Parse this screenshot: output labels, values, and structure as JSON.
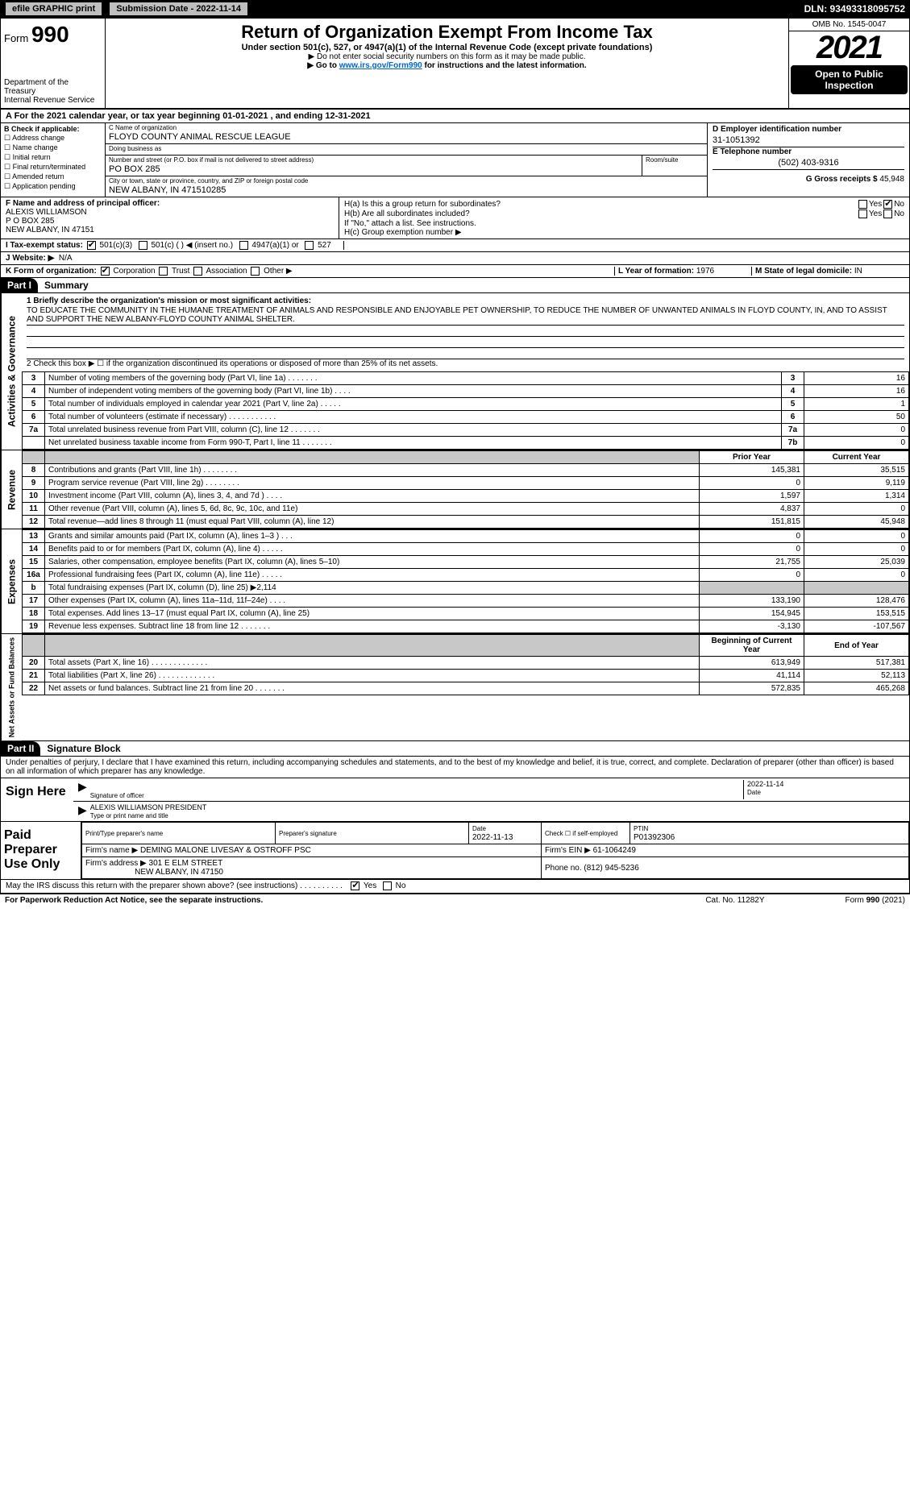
{
  "topbar": {
    "efile": "efile GRAPHIC print",
    "submission_label": "Submission Date - 2022-11-14",
    "dln": "DLN: 93493318095752"
  },
  "header": {
    "form_label": "Form",
    "form_num": "990",
    "dept1": "Department of the Treasury",
    "dept2": "Internal Revenue Service",
    "title": "Return of Organization Exempt From Income Tax",
    "sub1": "Under section 501(c), 527, or 4947(a)(1) of the Internal Revenue Code (except private foundations)",
    "sub2": "▶ Do not enter social security numbers on this form as it may be made public.",
    "sub3_pre": "▶ Go to ",
    "sub3_link": "www.irs.gov/Form990",
    "sub3_post": " for instructions and the latest information.",
    "omb": "OMB No. 1545-0047",
    "year": "2021",
    "inspect1": "Open to Public",
    "inspect2": "Inspection"
  },
  "period": "A For the 2021 calendar year, or tax year beginning 01-01-2021    , and ending 12-31-2021",
  "sectB": {
    "label": "B Check if applicable:",
    "cb1": "Address change",
    "cb2": "Name change",
    "cb3": "Initial return",
    "cb4": "Final return/terminated",
    "cb5": "Amended return",
    "cb6": "Application pending"
  },
  "sectC": {
    "name_lbl": "C Name of organization",
    "name": "FLOYD COUNTY ANIMAL RESCUE LEAGUE",
    "dba_lbl": "Doing business as",
    "dba": "",
    "addr_lbl": "Number and street (or P.O. box if mail is not delivered to street address)",
    "room_lbl": "Room/suite",
    "addr": "PO BOX 285",
    "city_lbl": "City or town, state or province, country, and ZIP or foreign postal code",
    "city": "NEW ALBANY, IN  471510285"
  },
  "sectD": {
    "ein_lbl": "D Employer identification number",
    "ein": "31-1051392",
    "tel_lbl": "E Telephone number",
    "tel": "(502) 403-9316",
    "gross_lbl": "G Gross receipts $",
    "gross": "45,948"
  },
  "sectF": {
    "lbl": "F Name and address of principal officer:",
    "name": "ALEXIS WILLIAMSON",
    "addr1": "P O BOX 285",
    "addr2": "NEW ALBANY, IN  47151"
  },
  "sectH": {
    "ha": "H(a)  Is this a group return for subordinates?",
    "hb": "H(b)  Are all subordinates included?",
    "hb_note": "If \"No,\" attach a list. See instructions.",
    "hc": "H(c)  Group exemption number ▶",
    "yes": "Yes",
    "no": "No"
  },
  "sectI": {
    "lbl": "I  Tax-exempt status:",
    "o1": "501(c)(3)",
    "o2": "501(c) (   ) ◀ (insert no.)",
    "o3": "4947(a)(1) or",
    "o4": "527"
  },
  "sectJ": {
    "lbl": "J  Website: ▶",
    "val": "N/A"
  },
  "sectK": {
    "lbl": "K Form of organization:",
    "o1": "Corporation",
    "o2": "Trust",
    "o3": "Association",
    "o4": "Other ▶"
  },
  "sectL": {
    "lbl": "L Year of formation:",
    "val": "1976"
  },
  "sectM": {
    "lbl": "M State of legal domicile:",
    "val": "IN"
  },
  "part1": {
    "hdr": "Part I",
    "title": "Summary",
    "vtab1": "Activities & Governance",
    "vtab2": "Revenue",
    "vtab3": "Expenses",
    "vtab4": "Net Assets or Fund Balances",
    "l1_lbl": "1  Briefly describe the organization's mission or most significant activities:",
    "l1_text": "TO EDUCATE THE COMMUNITY IN THE HUMANE TREATMENT OF ANIMALS AND RESPONSIBLE AND ENJOYABLE PET OWNERSHIP, TO REDUCE THE NUMBER OF UNWANTED ANIMALS IN FLOYD COUNTY, IN, AND TO ASSIST AND SUPPORT THE NEW ALBANY-FLOYD COUNTY ANIMAL SHELTER.",
    "l2": "2  Check this box ▶ ☐  if the organization discontinued its operations or disposed of more than 25% of its net assets.",
    "rows_ag": [
      {
        "n": "3",
        "d": "Number of voting members of the governing body (Part VI, line 1a)   .    .    .    .    .    .    .",
        "b": "3",
        "v": "16"
      },
      {
        "n": "4",
        "d": "Number of independent voting members of the governing body (Part VI, line 1b)   .    .    .    .",
        "b": "4",
        "v": "16"
      },
      {
        "n": "5",
        "d": "Total number of individuals employed in calendar year 2021 (Part V, line 2a)   .    .    .    .    .",
        "b": "5",
        "v": "1"
      },
      {
        "n": "6",
        "d": "Total number of volunteers (estimate if necessary)   .    .    .    .    .    .    .    .    .    .    .",
        "b": "6",
        "v": "50"
      },
      {
        "n": "7a",
        "d": "Total unrelated business revenue from Part VIII, column (C), line 12   .    .    .    .    .    .    .",
        "b": "7a",
        "v": "0"
      },
      {
        "n": "",
        "d": "Net unrelated business taxable income from Form 990-T, Part I, line 11   .    .    .    .    .    .    .",
        "b": "7b",
        "v": "0"
      }
    ],
    "col_prior": "Prior Year",
    "col_curr": "Current Year",
    "rows_rev": [
      {
        "n": "8",
        "d": "Contributions and grants (Part VIII, line 1h)   .    .    .    .    .    .    .    .",
        "p": "145,381",
        "c": "35,515"
      },
      {
        "n": "9",
        "d": "Program service revenue (Part VIII, line 2g)   .    .    .    .    .    .    .    .",
        "p": "0",
        "c": "9,119"
      },
      {
        "n": "10",
        "d": "Investment income (Part VIII, column (A), lines 3, 4, and 7d )   .    .    .    .",
        "p": "1,597",
        "c": "1,314"
      },
      {
        "n": "11",
        "d": "Other revenue (Part VIII, column (A), lines 5, 6d, 8c, 9c, 10c, and 11e)",
        "p": "4,837",
        "c": "0"
      },
      {
        "n": "12",
        "d": "Total revenue—add lines 8 through 11 (must equal Part VIII, column (A), line 12)",
        "p": "151,815",
        "c": "45,948"
      }
    ],
    "rows_exp": [
      {
        "n": "13",
        "d": "Grants and similar amounts paid (Part IX, column (A), lines 1–3 )   .    .    .",
        "p": "0",
        "c": "0"
      },
      {
        "n": "14",
        "d": "Benefits paid to or for members (Part IX, column (A), line 4)   .    .    .    .    .",
        "p": "0",
        "c": "0"
      },
      {
        "n": "15",
        "d": "Salaries, other compensation, employee benefits (Part IX, column (A), lines 5–10)",
        "p": "21,755",
        "c": "25,039"
      },
      {
        "n": "16a",
        "d": "Professional fundraising fees (Part IX, column (A), line 11e)   .    .    .    .    .",
        "p": "0",
        "c": "0"
      },
      {
        "n": "b",
        "d": "Total fundraising expenses (Part IX, column (D), line 25) ▶2,114",
        "p": "",
        "c": "",
        "shade": true
      },
      {
        "n": "17",
        "d": "Other expenses (Part IX, column (A), lines 11a–11d, 11f–24e)   .    .    .    .",
        "p": "133,190",
        "c": "128,476"
      },
      {
        "n": "18",
        "d": "Total expenses. Add lines 13–17 (must equal Part IX, column (A), line 25)",
        "p": "154,945",
        "c": "153,515"
      },
      {
        "n": "19",
        "d": "Revenue less expenses. Subtract line 18 from line 12   .    .    .    .    .    .    .",
        "p": "-3,130",
        "c": "-107,567"
      }
    ],
    "col_beg": "Beginning of Current Year",
    "col_end": "End of Year",
    "rows_net": [
      {
        "n": "20",
        "d": "Total assets (Part X, line 16)   .    .    .    .    .    .    .    .    .    .    .    .    .",
        "p": "613,949",
        "c": "517,381"
      },
      {
        "n": "21",
        "d": "Total liabilities (Part X, line 26)   .    .    .    .    .    .    .    .    .    .    .    .    .",
        "p": "41,114",
        "c": "52,113"
      },
      {
        "n": "22",
        "d": "Net assets or fund balances. Subtract line 21 from line 20   .    .    .    .    .    .    .",
        "p": "572,835",
        "c": "465,268"
      }
    ]
  },
  "part2": {
    "hdr": "Part II",
    "title": "Signature Block",
    "decl": "Under penalties of perjury, I declare that I have examined this return, including accompanying schedules and statements, and to the best of my knowledge and belief, it is true, correct, and complete. Declaration of preparer (other than officer) is based on all information of which preparer has any knowledge.",
    "sign_here": "Sign Here",
    "sig_officer": "Signature of officer",
    "sig_date": "Date",
    "sig_date_val": "2022-11-14",
    "sig_name": "ALEXIS WILLIAMSON  PRESIDENT",
    "sig_name_lbl": "Type or print name and title",
    "paid": "Paid Preparer Use Only",
    "prep_name_lbl": "Print/Type preparer's name",
    "prep_sig_lbl": "Preparer's signature",
    "prep_date_lbl": "Date",
    "prep_date": "2022-11-13",
    "prep_check": "Check ☐ if self-employed",
    "ptin_lbl": "PTIN",
    "ptin": "P01392306",
    "firm_name_lbl": "Firm's name    ▶",
    "firm_name": "DEMING MALONE LIVESAY & OSTROFF PSC",
    "firm_ein_lbl": "Firm's EIN ▶",
    "firm_ein": "61-1064249",
    "firm_addr_lbl": "Firm's address ▶",
    "firm_addr1": "301 E ELM STREET",
    "firm_addr2": "NEW ALBANY, IN  47150",
    "firm_phone_lbl": "Phone no.",
    "firm_phone": "(812) 945-5236",
    "discuss": "May the IRS discuss this return with the preparer shown above? (see instructions)   .    .    .    .    .    .    .    .    .    .",
    "discuss_yes": "Yes",
    "discuss_no": "No"
  },
  "footer": {
    "left": "For Paperwork Reduction Act Notice, see the separate instructions.",
    "mid": "Cat. No. 11282Y",
    "right": "Form 990 (2021)"
  },
  "colors": {
    "black": "#000000",
    "grey": "#c8c8c8",
    "link": "#0066cc"
  }
}
